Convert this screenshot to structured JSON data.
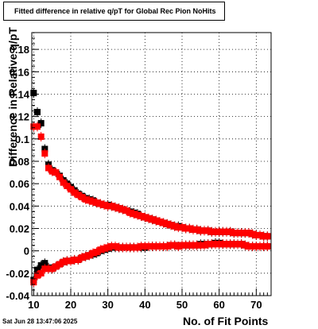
{
  "title": "Fitted difference in relative q/pT for Global Rec Pion NoHits",
  "datestamp": "Sat Jun 28 13:47:06 2025",
  "chart_data": {
    "type": "scatter",
    "title": "Fitted difference in relative q/pT for Global Rec Pion NoHits",
    "xlabel": "No. of Fit Points",
    "ylabel": "Difference in Relative q/pT",
    "xlim": [
      9.5,
      74
    ],
    "ylim": [
      -0.04,
      0.195
    ],
    "x_ticks": [
      10,
      20,
      30,
      40,
      50,
      60,
      70
    ],
    "y_ticks": [
      -0.04,
      -0.02,
      0,
      0.02,
      0.04,
      0.06,
      0.08,
      0.1,
      0.12,
      0.14,
      0.16,
      0.18
    ],
    "y_tick_labels": [
      "-0.04",
      "-0.02",
      "0",
      "0.02",
      "0.04",
      "0.06",
      "0.08",
      "0.1",
      "0.12",
      "0.14",
      "0.16",
      "0.18"
    ],
    "grid": true,
    "colors": {
      "upper_series": "#ff0000",
      "lower_series": "#ff0000",
      "black_markers": "#000000"
    },
    "series": [
      {
        "color": "#ff0000",
        "x": [
          10,
          11,
          12,
          13,
          14,
          15,
          16,
          17,
          18,
          19,
          20,
          21,
          22,
          23,
          24,
          25,
          26,
          27,
          28,
          29,
          30,
          31,
          32,
          33,
          34,
          35,
          36,
          37,
          38,
          39,
          40,
          41,
          42,
          43,
          44,
          45,
          46,
          47,
          48,
          49,
          50,
          51,
          52,
          53,
          54,
          55,
          56,
          57,
          58,
          59,
          60,
          61,
          62,
          63,
          64,
          65,
          66,
          67,
          68,
          69,
          70,
          71,
          72,
          73
        ],
        "y": [
          0.111,
          0.111,
          0.102,
          0.087,
          0.074,
          0.071,
          0.07,
          0.066,
          0.061,
          0.058,
          0.055,
          0.052,
          0.05,
          0.048,
          0.046,
          0.045,
          0.044,
          0.043,
          0.042,
          0.041,
          0.04,
          0.04,
          0.039,
          0.038,
          0.037,
          0.036,
          0.034,
          0.033,
          0.032,
          0.031,
          0.03,
          0.029,
          0.028,
          0.027,
          0.026,
          0.025,
          0.024,
          0.023,
          0.022,
          0.021,
          0.021,
          0.02,
          0.02,
          0.019,
          0.019,
          0.018,
          0.018,
          0.018,
          0.017,
          0.017,
          0.017,
          0.017,
          0.017,
          0.017,
          0.016,
          0.016,
          0.016,
          0.016,
          0.016,
          0.015,
          0.014,
          0.014,
          0.013,
          0.013
        ]
      },
      {
        "color": "#ff0000",
        "x": [
          10,
          11,
          12,
          13,
          14,
          15,
          16,
          17,
          18,
          19,
          20,
          21,
          22,
          23,
          24,
          25,
          26,
          27,
          28,
          29,
          30,
          31,
          32,
          33,
          34,
          35,
          36,
          37,
          38,
          39,
          40,
          41,
          42,
          43,
          44,
          45,
          46,
          47,
          48,
          49,
          50,
          51,
          52,
          53,
          54,
          55,
          56,
          57,
          58,
          59,
          60,
          61,
          62,
          63,
          64,
          65,
          66,
          67,
          68,
          69,
          70,
          71,
          72,
          73
        ],
        "y": [
          -0.028,
          -0.022,
          -0.02,
          -0.016,
          -0.016,
          -0.016,
          -0.014,
          -0.012,
          -0.01,
          -0.009,
          -0.009,
          -0.008,
          -0.008,
          -0.006,
          -0.005,
          -0.004,
          -0.002,
          -0.001,
          0.001,
          0.002,
          0.003,
          0.004,
          0.004,
          0.003,
          0.003,
          0.003,
          0.003,
          0.003,
          0.003,
          0.004,
          0.004,
          0.004,
          0.004,
          0.004,
          0.004,
          0.004,
          0.004,
          0.005,
          0.005,
          0.004,
          0.005,
          0.005,
          0.005,
          0.005,
          0.005,
          0.005,
          0.005,
          0.006,
          0.006,
          0.006,
          0.006,
          0.006,
          0.006,
          0.006,
          0.006,
          0.006,
          0.006,
          0.005,
          0.004,
          0.004,
          0.004,
          0.004,
          0.004,
          0.004
        ]
      },
      {
        "color": "#000000",
        "x": [
          10,
          11,
          12,
          13,
          14,
          15,
          16,
          17,
          18,
          19,
          20,
          21,
          22,
          23,
          24,
          25,
          26,
          27,
          28,
          29,
          30,
          31,
          32,
          33,
          34,
          35,
          36,
          37,
          38,
          39,
          40,
          41,
          42,
          43,
          44,
          45,
          46,
          47,
          48,
          49,
          50,
          51,
          52,
          53,
          54,
          55,
          56,
          57,
          58,
          59,
          60,
          61,
          62,
          63,
          64,
          65,
          66,
          67,
          68,
          69,
          70,
          71,
          72,
          73
        ],
        "y": [
          0.141,
          0.124,
          0.114,
          0.091,
          0.077,
          0.072,
          0.07,
          0.067,
          0.063,
          0.06,
          0.057,
          0.054,
          0.051,
          0.049,
          0.047,
          0.046,
          0.045,
          0.043,
          0.042,
          0.041,
          0.041,
          0.04,
          0.039,
          0.038,
          0.037,
          0.036,
          0.035,
          0.034,
          0.033,
          0.031,
          0.03,
          0.029,
          0.028,
          0.027,
          0.026,
          0.025,
          0.024,
          0.023,
          0.022,
          0.022,
          0.021,
          0.02,
          0.02,
          0.019,
          0.019,
          0.018,
          0.018,
          0.018,
          0.017,
          0.017,
          0.017,
          0.017,
          0.017,
          0.017,
          0.016,
          0.016,
          0.016,
          0.016,
          0.016,
          0.015,
          0.014,
          0.014,
          0.013,
          0.013
        ]
      },
      {
        "color": "#000000",
        "x": [
          10,
          11,
          12,
          13,
          14,
          15,
          16,
          17,
          18,
          19,
          20,
          21,
          22,
          23,
          24,
          25,
          26,
          27,
          28,
          29,
          30,
          31,
          32,
          33,
          34,
          35,
          36,
          37,
          38,
          39,
          40,
          41,
          42,
          43,
          44,
          45,
          46,
          47,
          48,
          49,
          50,
          51,
          52,
          53,
          54,
          55,
          56,
          57,
          58,
          59,
          60,
          61,
          62,
          63,
          64,
          65,
          66,
          67,
          68,
          69,
          70,
          71,
          72,
          73
        ],
        "y": [
          -0.026,
          -0.017,
          -0.013,
          -0.011,
          -0.015,
          -0.016,
          -0.014,
          -0.012,
          -0.01,
          -0.009,
          -0.009,
          -0.008,
          -0.008,
          -0.006,
          -0.005,
          -0.004,
          -0.003,
          -0.002,
          0,
          0.001,
          0.002,
          0.003,
          0.003,
          0.003,
          0.003,
          0.003,
          0.003,
          0.003,
          0.003,
          0.003,
          0.003,
          0.004,
          0.004,
          0.004,
          0.004,
          0.004,
          0.004,
          0.005,
          0.005,
          0.004,
          0.005,
          0.005,
          0.005,
          0.005,
          0.005,
          0.006,
          0.006,
          0.006,
          0.006,
          0.007,
          0.007,
          0.006,
          0.006,
          0.006,
          0.006,
          0.006,
          0.006,
          0.005,
          0.004,
          0.004,
          0.004,
          0.004,
          0.004,
          0.004
        ]
      }
    ]
  }
}
